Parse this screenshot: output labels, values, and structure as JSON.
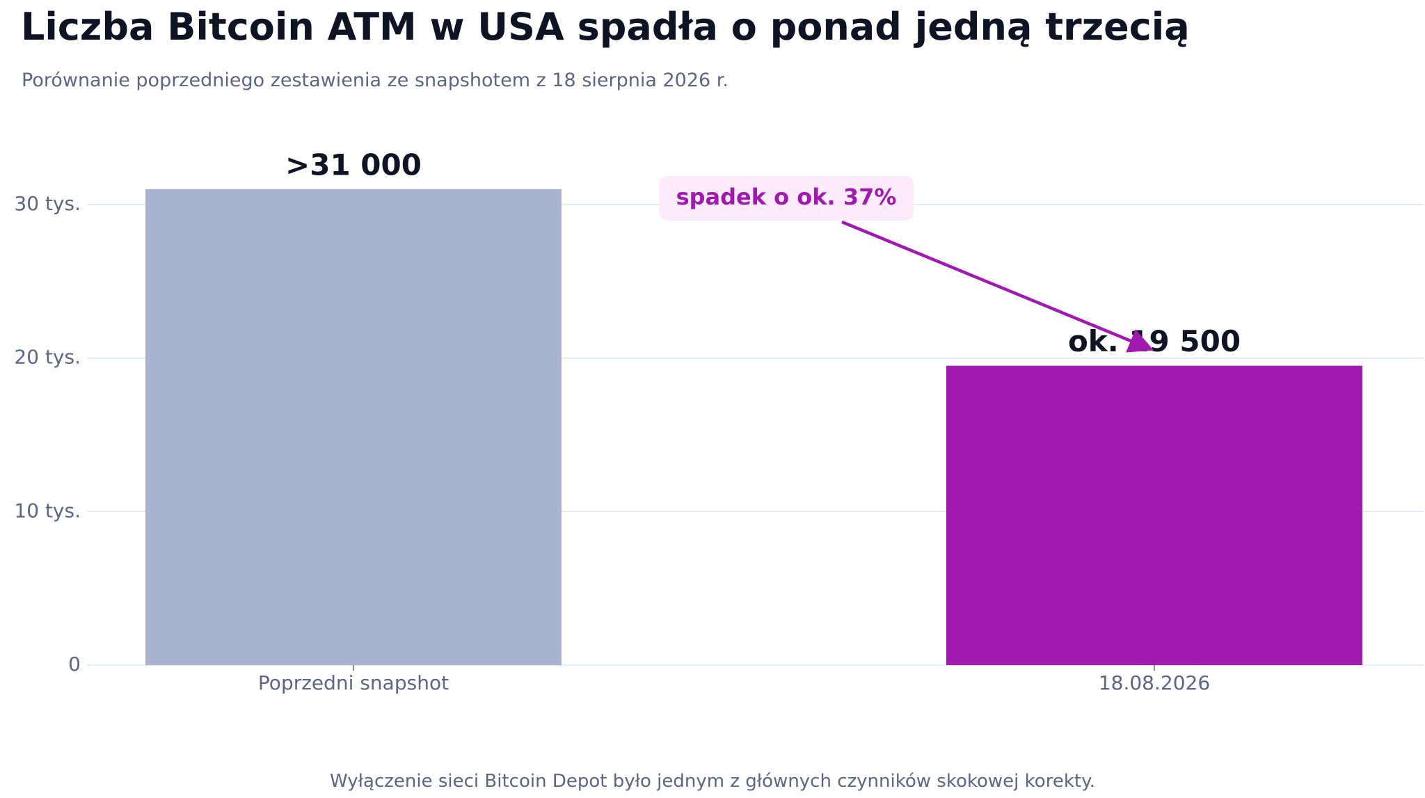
{
  "title": "Liczba Bitcoin ATM w USA spadła o ponad jedną trzecią",
  "subtitle": "Porównanie poprzedniego zestawienia ze snapshotem z 18 sierpnia 2026 r.",
  "footnote": "Wyłączenie sieci Bitcoin Depot było jednym z głównych czynników skokowej korekty.",
  "chart_data": {
    "type": "bar",
    "categories": [
      "Poprzedni snapshot",
      "18.08.2026"
    ],
    "values": [
      31000,
      19500
    ],
    "value_labels": [
      ">31 000",
      "ok. 19 500"
    ],
    "bar_colors": [
      "#a9b3cd",
      "#a11aaf"
    ],
    "ylim": [
      0,
      33000
    ],
    "yticks": [
      {
        "value": 0,
        "label": "0"
      },
      {
        "value": 10000,
        "label": "10 tys."
      },
      {
        "value": 20000,
        "label": "20 tys."
      },
      {
        "value": 30000,
        "label": "30 tys."
      }
    ],
    "grid": true,
    "annotation": {
      "text": "spadek o ok. 37%",
      "text_color": "#a11aaf",
      "background_color": "#fcebfb",
      "arrow_color": "#a11aaf",
      "points_to_category": "18.08.2026"
    },
    "xlabel": "",
    "ylabel": ""
  }
}
